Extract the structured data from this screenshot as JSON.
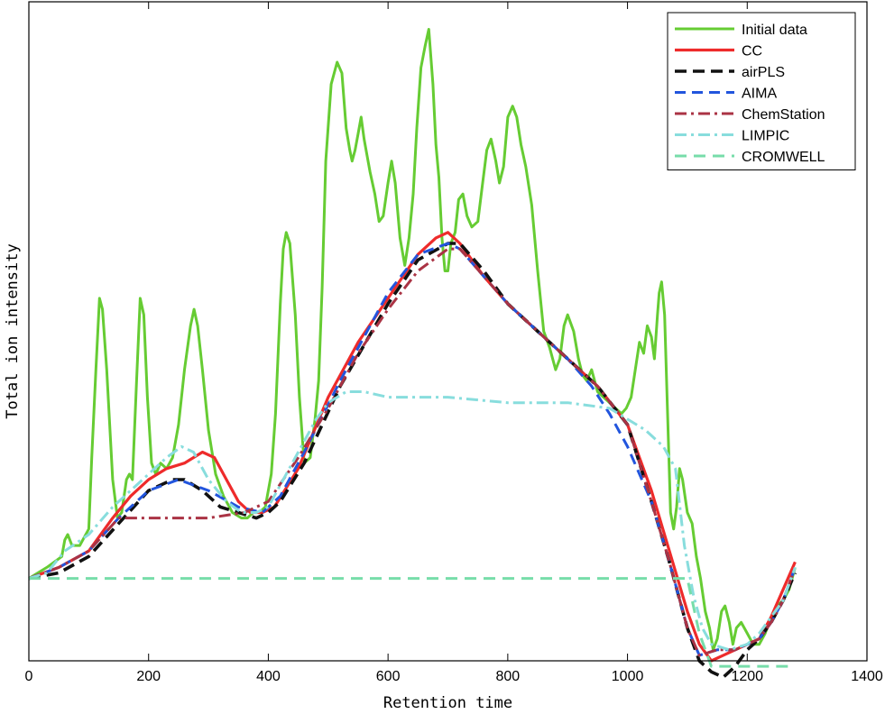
{
  "chart_data": {
    "type": "line",
    "title": "",
    "xlabel": "Retention time",
    "ylabel": "Total ion intensity",
    "xlim": [
      0,
      1400
    ],
    "ylim": [
      -0.15,
      1.05
    ],
    "xticks": [
      0,
      200,
      400,
      600,
      800,
      1000,
      1200,
      1400
    ],
    "show_yticks": false,
    "grid": false,
    "legend_position": "top-right",
    "series": [
      {
        "name": "Initial data",
        "color": "#66cc33",
        "dash": "solid",
        "width": 3,
        "x": [
          0,
          30,
          55,
          60,
          65,
          72,
          85,
          100,
          105,
          112,
          118,
          123,
          130,
          140,
          148,
          155,
          163,
          168,
          173,
          180,
          186,
          192,
          198,
          205,
          212,
          220,
          230,
          240,
          250,
          260,
          270,
          276,
          282,
          290,
          300,
          312,
          325,
          340,
          355,
          365,
          375,
          385,
          395,
          405,
          412,
          420,
          425,
          430,
          436,
          445,
          452,
          460,
          470,
          478,
          484,
          490,
          496,
          505,
          515,
          523,
          530,
          536,
          540,
          545,
          550,
          555,
          560,
          565,
          570,
          578,
          585,
          592,
          600,
          606,
          612,
          620,
          628,
          635,
          642,
          648,
          655,
          662,
          668,
          675,
          680,
          685,
          690,
          695,
          700,
          705,
          712,
          718,
          725,
          732,
          740,
          750,
          758,
          765,
          772,
          780,
          786,
          793,
          800,
          808,
          815,
          822,
          830,
          840,
          850,
          860,
          870,
          880,
          887,
          894,
          900,
          910,
          918,
          925,
          932,
          940,
          950,
          960,
          970,
          980,
          990,
          998,
          1006,
          1013,
          1020,
          1027,
          1033,
          1040,
          1045,
          1050,
          1053,
          1057,
          1062,
          1067,
          1072,
          1077,
          1082,
          1087,
          1092,
          1100,
          1108,
          1115,
          1122,
          1130,
          1137,
          1143,
          1150,
          1157,
          1163,
          1170,
          1176,
          1182,
          1190,
          1200,
          1210,
          1220,
          1230,
          1240,
          1250,
          1260,
          1270,
          1280
        ],
        "y": [
          0,
          0.02,
          0.04,
          0.07,
          0.08,
          0.06,
          0.06,
          0.09,
          0.22,
          0.38,
          0.51,
          0.49,
          0.38,
          0.18,
          0.11,
          0.12,
          0.18,
          0.19,
          0.18,
          0.36,
          0.51,
          0.48,
          0.33,
          0.21,
          0.19,
          0.21,
          0.2,
          0.22,
          0.28,
          0.38,
          0.46,
          0.49,
          0.46,
          0.38,
          0.27,
          0.19,
          0.15,
          0.12,
          0.11,
          0.11,
          0.12,
          0.12,
          0.13,
          0.19,
          0.3,
          0.5,
          0.6,
          0.63,
          0.61,
          0.48,
          0.33,
          0.21,
          0.22,
          0.29,
          0.36,
          0.53,
          0.76,
          0.9,
          0.94,
          0.92,
          0.82,
          0.78,
          0.76,
          0.78,
          0.81,
          0.84,
          0.8,
          0.77,
          0.74,
          0.7,
          0.65,
          0.66,
          0.72,
          0.76,
          0.72,
          0.62,
          0.57,
          0.62,
          0.7,
          0.82,
          0.93,
          0.97,
          1.0,
          0.9,
          0.79,
          0.73,
          0.62,
          0.56,
          0.56,
          0.61,
          0.63,
          0.69,
          0.7,
          0.66,
          0.64,
          0.65,
          0.72,
          0.78,
          0.8,
          0.76,
          0.72,
          0.75,
          0.84,
          0.86,
          0.84,
          0.79,
          0.75,
          0.68,
          0.56,
          0.45,
          0.42,
          0.38,
          0.4,
          0.46,
          0.48,
          0.45,
          0.4,
          0.37,
          0.36,
          0.38,
          0.34,
          0.33,
          0.32,
          0.31,
          0.3,
          0.31,
          0.33,
          0.38,
          0.43,
          0.41,
          0.46,
          0.44,
          0.4,
          0.48,
          0.52,
          0.54,
          0.48,
          0.3,
          0.12,
          0.09,
          0.13,
          0.2,
          0.18,
          0.12,
          0.1,
          0.04,
          0.0,
          -0.06,
          -0.09,
          -0.13,
          -0.11,
          -0.06,
          -0.05,
          -0.08,
          -0.12,
          -0.09,
          -0.08,
          -0.1,
          -0.12,
          -0.12,
          -0.1,
          -0.07,
          -0.05,
          -0.04,
          -0.02,
          0.02
        ]
      },
      {
        "name": "CC",
        "color": "#ee2b2b",
        "dash": "solid",
        "width": 3.2,
        "x": [
          0,
          50,
          100,
          140,
          170,
          200,
          230,
          260,
          290,
          310,
          330,
          350,
          370,
          390,
          410,
          450,
          500,
          550,
          600,
          650,
          680,
          700,
          720,
          760,
          800,
          850,
          900,
          950,
          1000,
          1040,
          1070,
          1100,
          1120,
          1140,
          1160,
          1180,
          1200,
          1220,
          1240,
          1260,
          1280
        ],
        "y": [
          0,
          0.02,
          0.05,
          0.11,
          0.15,
          0.18,
          0.2,
          0.21,
          0.23,
          0.22,
          0.18,
          0.14,
          0.12,
          0.12,
          0.13,
          0.2,
          0.33,
          0.43,
          0.51,
          0.59,
          0.62,
          0.63,
          0.61,
          0.55,
          0.5,
          0.45,
          0.4,
          0.35,
          0.28,
          0.16,
          0.05,
          -0.06,
          -0.12,
          -0.15,
          -0.14,
          -0.13,
          -0.12,
          -0.11,
          -0.07,
          -0.02,
          0.03
        ]
      },
      {
        "name": "airPLS",
        "color": "#111111",
        "dash": "13,7",
        "width": 3.6,
        "x": [
          0,
          50,
          100,
          150,
          200,
          240,
          260,
          290,
          320,
          350,
          380,
          400,
          420,
          460,
          520,
          600,
          650,
          700,
          720,
          760,
          800,
          850,
          900,
          950,
          1000,
          1040,
          1070,
          1100,
          1120,
          1140,
          1160,
          1180,
          1200,
          1220,
          1240,
          1260,
          1280
        ],
        "y": [
          0,
          0.01,
          0.04,
          0.1,
          0.16,
          0.18,
          0.18,
          0.16,
          0.13,
          0.12,
          0.11,
          0.12,
          0.14,
          0.21,
          0.35,
          0.5,
          0.58,
          0.61,
          0.61,
          0.56,
          0.5,
          0.45,
          0.4,
          0.35,
          0.28,
          0.14,
          0.03,
          -0.09,
          -0.15,
          -0.17,
          -0.18,
          -0.16,
          -0.13,
          -0.11,
          -0.08,
          -0.04,
          0.01
        ]
      },
      {
        "name": "AIMA",
        "color": "#2255dd",
        "dash": "12,7",
        "width": 3,
        "x": [
          0,
          50,
          100,
          150,
          200,
          250,
          300,
          350,
          390,
          420,
          460,
          520,
          600,
          650,
          700,
          720,
          760,
          800,
          850,
          900,
          940,
          970,
          1000,
          1040,
          1070,
          1100,
          1120,
          1150,
          1180,
          1200,
          1220,
          1240,
          1260,
          1280
        ],
        "y": [
          0,
          0.02,
          0.05,
          0.11,
          0.16,
          0.18,
          0.16,
          0.13,
          0.12,
          0.15,
          0.23,
          0.36,
          0.52,
          0.59,
          0.61,
          0.6,
          0.55,
          0.5,
          0.45,
          0.4,
          0.35,
          0.3,
          0.24,
          0.14,
          0.03,
          -0.09,
          -0.14,
          -0.13,
          -0.13,
          -0.12,
          -0.11,
          -0.08,
          -0.04,
          0.02
        ]
      },
      {
        "name": "ChemStation",
        "color": "#aa3344",
        "dash": "13,5,3,5",
        "width": 3,
        "x": [
          0,
          50,
          100,
          150,
          200,
          250,
          300,
          360,
          400,
          450,
          500,
          550,
          600,
          650,
          700,
          720,
          760,
          800,
          850,
          900,
          950,
          1000,
          1040,
          1070,
          1100,
          1120,
          1150,
          1180,
          1200,
          1220,
          1240,
          1260,
          1280
        ],
        "y": [
          0,
          0.02,
          0.05,
          0.11,
          0.11,
          0.11,
          0.11,
          0.12,
          0.14,
          0.22,
          0.31,
          0.41,
          0.49,
          0.56,
          0.6,
          0.6,
          0.55,
          0.5,
          0.45,
          0.4,
          0.35,
          0.28,
          0.14,
          0.03,
          -0.09,
          -0.14,
          -0.13,
          -0.13,
          -0.12,
          -0.11,
          -0.08,
          -0.04,
          0.02
        ]
      },
      {
        "name": "LIMPIC",
        "color": "#88dddd",
        "dash": "13,5,3,5",
        "width": 3,
        "x": [
          0,
          30,
          60,
          100,
          140,
          180,
          200,
          230,
          255,
          275,
          300,
          330,
          355,
          380,
          400,
          420,
          450,
          480,
          500,
          530,
          560,
          600,
          700,
          800,
          900,
          970,
          1000,
          1030,
          1060,
          1080,
          1095,
          1110,
          1125,
          1140,
          1170,
          1200,
          1220,
          1240,
          1260,
          1280
        ],
        "y": [
          0,
          0.01,
          0.05,
          0.08,
          0.13,
          0.17,
          0.19,
          0.22,
          0.24,
          0.23,
          0.18,
          0.14,
          0.12,
          0.12,
          0.13,
          0.17,
          0.23,
          0.29,
          0.32,
          0.34,
          0.34,
          0.33,
          0.33,
          0.32,
          0.32,
          0.31,
          0.29,
          0.27,
          0.24,
          0.2,
          0.06,
          -0.03,
          -0.09,
          -0.12,
          -0.13,
          -0.12,
          -0.1,
          -0.07,
          -0.04,
          0.02
        ]
      },
      {
        "name": "CROMWELL",
        "color": "#77ddaa",
        "dash": "13,8",
        "width": 3,
        "x": [
          0,
          1100,
          1120,
          1140,
          1270
        ],
        "y": [
          0,
          0,
          -0.1,
          -0.16,
          -0.16
        ]
      }
    ]
  }
}
